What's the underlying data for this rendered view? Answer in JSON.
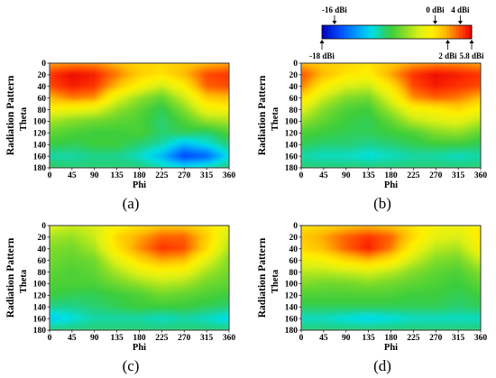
{
  "chart_data": {
    "type": "heatmap",
    "layout": "2x2",
    "x_axis": {
      "label": "Phi",
      "range": [
        0,
        360
      ],
      "ticks": [
        0,
        45,
        90,
        135,
        180,
        225,
        270,
        315,
        360
      ]
    },
    "y_axis": {
      "label": "Theta",
      "range": [
        0,
        180
      ],
      "inverted": true,
      "ticks": [
        0,
        20,
        40,
        60,
        80,
        100,
        120,
        140,
        160,
        180
      ]
    },
    "side_label": "Radiation Pattern",
    "colorbar": {
      "unit": "dBi",
      "range": [
        -18,
        5.8
      ],
      "placement": "top-right",
      "annotations_top": [
        "-16 dBi",
        "0 dBi",
        "4 dBi"
      ],
      "annotations_top_values": [
        -16,
        0,
        4
      ],
      "annotations_bottom": [
        "-18 dBi",
        "2 dBi",
        "5.8 dBi"
      ],
      "annotations_bottom_values": [
        -18,
        2,
        5.8
      ],
      "colors": [
        "#0000c8",
        "#0040ff",
        "#00a0ff",
        "#00e0e0",
        "#20d080",
        "#40d040",
        "#a0e020",
        "#ffff00",
        "#ffc000",
        "#ff8000",
        "#ff4000",
        "#ff0000"
      ]
    },
    "panels": [
      {
        "label": "(a)",
        "grid_phi": [
          0,
          45,
          90,
          135,
          180,
          225,
          270,
          315,
          360
        ],
        "values": [
          [
            2.0,
            2.5,
            2.5,
            1.5,
            0.5,
            0.5,
            1.0,
            1.5,
            2.0
          ],
          [
            4.5,
            5.5,
            5.0,
            3.0,
            1.0,
            0.0,
            1.5,
            4.0,
            4.5
          ],
          [
            4.0,
            5.0,
            4.5,
            1.5,
            -1.0,
            -3.0,
            -0.5,
            3.5,
            4.0
          ],
          [
            1.5,
            3.0,
            2.5,
            -2.0,
            -4.5,
            -6.0,
            -3.0,
            1.0,
            1.5
          ],
          [
            -1.0,
            -1.5,
            -2.0,
            -4.5,
            -6.0,
            -7.5,
            -5.0,
            -1.5,
            -1.0
          ],
          [
            -4.0,
            -5.0,
            -5.5,
            -6.0,
            -6.5,
            -8.0,
            -6.5,
            -4.5,
            -4.0
          ],
          [
            -6.0,
            -6.5,
            -7.0,
            -7.0,
            -6.5,
            -8.0,
            -7.5,
            -8.0,
            -6.5
          ],
          [
            -7.0,
            -7.5,
            -7.0,
            -7.0,
            -8.0,
            -9.0,
            -11.5,
            -10.0,
            -8.0
          ],
          [
            -9.0,
            -9.0,
            -8.5,
            -8.5,
            -9.5,
            -11.5,
            -15.5,
            -14.5,
            -10.0
          ],
          [
            -7.5,
            -8.0,
            -8.0,
            -8.0,
            -8.0,
            -9.0,
            -10.0,
            -9.0,
            -8.0
          ]
        ]
      },
      {
        "label": "(b)",
        "grid_phi": [
          0,
          45,
          90,
          135,
          180,
          225,
          270,
          315,
          360
        ],
        "values": [
          [
            1.5,
            1.0,
            0.5,
            0.0,
            1.0,
            2.0,
            2.5,
            2.5,
            2.0
          ],
          [
            4.0,
            1.5,
            0.0,
            -0.5,
            2.0,
            4.5,
            5.5,
            5.0,
            4.5
          ],
          [
            3.0,
            -0.5,
            -2.5,
            -3.0,
            0.0,
            4.0,
            5.0,
            4.5,
            4.0
          ],
          [
            0.5,
            -3.0,
            -5.0,
            -5.5,
            -2.0,
            2.5,
            3.5,
            3.0,
            1.5
          ],
          [
            -2.0,
            -5.0,
            -6.5,
            -7.0,
            -4.0,
            -1.0,
            -0.5,
            0.5,
            -1.0
          ],
          [
            -4.5,
            -6.0,
            -7.0,
            -7.5,
            -6.0,
            -3.5,
            -2.5,
            -2.0,
            -3.5
          ],
          [
            -6.5,
            -7.0,
            -7.5,
            -7.5,
            -7.0,
            -6.5,
            -5.0,
            -4.5,
            -6.0
          ],
          [
            -7.5,
            -8.0,
            -8.0,
            -8.5,
            -8.0,
            -7.5,
            -7.0,
            -7.0,
            -7.5
          ],
          [
            -9.0,
            -9.5,
            -9.5,
            -10.0,
            -9.5,
            -9.0,
            -9.0,
            -9.5,
            -9.0
          ],
          [
            -8.0,
            -8.0,
            -8.0,
            -8.0,
            -8.0,
            -8.0,
            -8.0,
            -8.0,
            -8.0
          ]
        ]
      },
      {
        "label": "(c)",
        "grid_phi": [
          0,
          45,
          90,
          135,
          180,
          225,
          270,
          315,
          360
        ],
        "values": [
          [
            -2.0,
            -3.0,
            -2.5,
            -1.0,
            0.0,
            1.0,
            1.0,
            0.0,
            -1.5
          ],
          [
            -4.0,
            -4.5,
            -3.0,
            0.5,
            2.0,
            3.5,
            3.5,
            1.0,
            -3.0
          ],
          [
            -5.0,
            -5.5,
            -4.0,
            0.0,
            2.5,
            4.5,
            4.0,
            0.5,
            -4.0
          ],
          [
            -5.5,
            -6.0,
            -5.5,
            -2.0,
            0.5,
            2.0,
            1.5,
            -2.0,
            -5.0
          ],
          [
            -6.0,
            -6.5,
            -6.0,
            -4.0,
            -2.0,
            -1.0,
            -1.5,
            -4.0,
            -5.5
          ],
          [
            -6.5,
            -6.5,
            -6.5,
            -5.5,
            -4.5,
            -3.5,
            -4.0,
            -5.5,
            -6.0
          ],
          [
            -7.0,
            -7.5,
            -7.5,
            -7.0,
            -6.5,
            -5.5,
            -6.0,
            -6.5,
            -7.0
          ],
          [
            -8.5,
            -8.5,
            -8.0,
            -7.5,
            -7.0,
            -7.0,
            -7.0,
            -7.5,
            -8.0
          ],
          [
            -11.0,
            -10.0,
            -9.0,
            -9.0,
            -9.0,
            -9.5,
            -9.0,
            -9.5,
            -10.5
          ],
          [
            -8.0,
            -8.0,
            -8.0,
            -8.0,
            -8.0,
            -8.0,
            -8.0,
            -8.0,
            -8.0
          ]
        ]
      },
      {
        "label": "(d)",
        "grid_phi": [
          0,
          45,
          90,
          135,
          180,
          225,
          270,
          315,
          360
        ],
        "values": [
          [
            0.0,
            0.5,
            1.0,
            1.5,
            1.0,
            0.0,
            -1.0,
            -1.5,
            -0.5
          ],
          [
            1.0,
            2.0,
            3.5,
            4.5,
            3.5,
            0.5,
            -2.0,
            -2.5,
            0.0
          ],
          [
            0.5,
            1.5,
            3.5,
            5.0,
            3.0,
            -1.0,
            -3.5,
            -4.0,
            -1.0
          ],
          [
            -1.5,
            -1.0,
            0.5,
            1.5,
            0.0,
            -3.0,
            -5.0,
            -5.5,
            -3.0
          ],
          [
            -3.5,
            -3.5,
            -3.0,
            -2.5,
            -3.5,
            -5.0,
            -6.0,
            -6.5,
            -5.0
          ],
          [
            -5.0,
            -5.5,
            -5.5,
            -5.0,
            -5.5,
            -6.0,
            -6.5,
            -7.0,
            -6.0
          ],
          [
            -6.5,
            -6.5,
            -6.5,
            -6.5,
            -6.5,
            -7.0,
            -7.0,
            -7.5,
            -7.0
          ],
          [
            -7.5,
            -7.5,
            -7.5,
            -7.5,
            -7.5,
            -7.5,
            -7.5,
            -8.0,
            -7.5
          ],
          [
            -9.5,
            -9.5,
            -10.0,
            -10.5,
            -10.0,
            -9.5,
            -9.5,
            -9.5,
            -9.5
          ],
          [
            -8.0,
            -8.0,
            -8.0,
            -8.0,
            -8.0,
            -8.0,
            -8.0,
            -8.0,
            -8.0
          ]
        ]
      }
    ]
  }
}
